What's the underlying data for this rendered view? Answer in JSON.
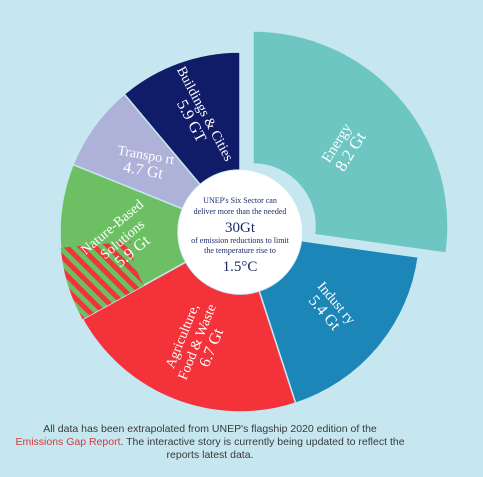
{
  "chart_data": {
    "type": "pie",
    "variant": "donut",
    "unit_labels": [
      "Gt",
      "GT"
    ],
    "segments": [
      {
        "name": "Energy",
        "value_label": "8.2 Gt",
        "value": 8.2,
        "color": "#6ec6c2",
        "text_color": "#1c5d7a",
        "exploded": true
      },
      {
        "name": "Industry",
        "display_name": "Indust ry",
        "value_label": "5.4 Gt",
        "value": 5.4,
        "color": "#1d86b8",
        "text_color": "#ffffff"
      },
      {
        "name": "Agriculture, Food & Waste",
        "lines": [
          "Agriculture,",
          "Food & Waste"
        ],
        "value_label": "6.7 Gt",
        "value": 6.7,
        "color": "#f3323a",
        "text_color": "#ffffff"
      },
      {
        "name": "Nature-Based Solutions",
        "lines": [
          "Nature-Based",
          "Solutions"
        ],
        "value_label": "5.9 Gt",
        "value": 5.9,
        "color": "#6cc063",
        "text_color": "#ffffff",
        "hatched_overlap": true
      },
      {
        "name": "Transport",
        "display_name": "Transpo rt",
        "value_label": "4.7 Gt",
        "value": 4.7,
        "color": "#aeb2d8",
        "text_color": "#2c3f86"
      },
      {
        "name": "Buildings & Cities",
        "value_label": "5.9 GT",
        "value": 5.9,
        "color": "#111c69",
        "text_color": "#ffffff"
      }
    ],
    "center": {
      "line1": "UNEP's Six Sector can",
      "line2": "deliver more than the needed",
      "big1": "30Gt",
      "line3": "of emission reductions to limit",
      "line4": "the temperature rise to",
      "big2": "1.5°C"
    }
  },
  "footer": {
    "text_before": "All data has been extrapolated from UNEP's flagship 2020 edition of the",
    "link_text": "Emissions Gap Report",
    "text_after": ". The interactive story is currently being updated to reflect the reports latest data."
  },
  "colors": {
    "background": "#c6e6f0",
    "center_circle": "#ffffff",
    "hatch_stripe": "#ffffff"
  }
}
